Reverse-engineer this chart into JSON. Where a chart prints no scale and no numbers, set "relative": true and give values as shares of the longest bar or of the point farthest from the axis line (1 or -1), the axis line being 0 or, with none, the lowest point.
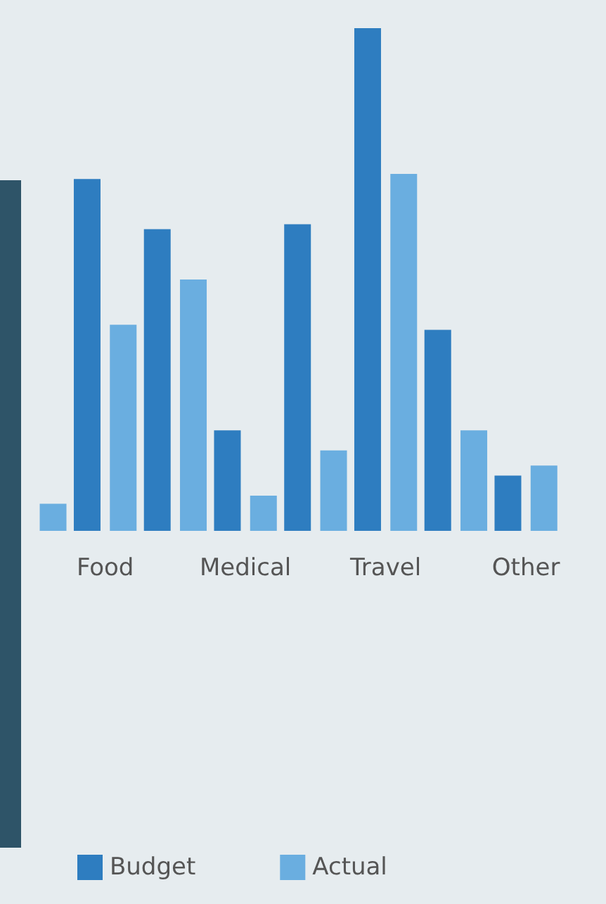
{
  "chart_data": {
    "type": "bar",
    "relative": true,
    "categories": [
      null,
      "Food",
      null,
      "Medical",
      null,
      "Travel",
      null,
      "Other"
    ],
    "series": [
      {
        "name": "Budget",
        "color": "#2e7dc0",
        "values": [
          null,
          0.7,
          0.6,
          0.2,
          0.61,
          1.0,
          0.4,
          0.11
        ]
      },
      {
        "name": "Actual",
        "color": "#6aaee0",
        "values": [
          0.054,
          0.41,
          0.5,
          0.07,
          0.16,
          0.71,
          0.2,
          0.13
        ]
      }
    ],
    "legend": "bottom left"
  }
}
